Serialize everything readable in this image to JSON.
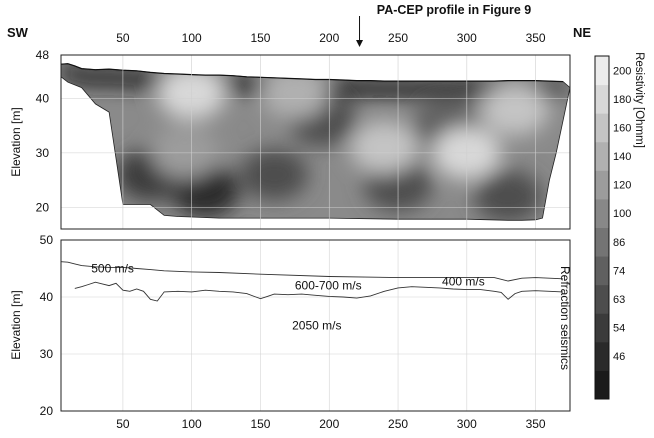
{
  "top_annotation": "PA-CEP profile in Figure 9",
  "chart_data": [
    {
      "type": "heatmap",
      "title": "",
      "direction_labels": {
        "left": "SW",
        "right": "NE"
      },
      "xlabel": "",
      "ylabel": "Elevation [m]",
      "xlim": [
        5,
        375
      ],
      "ylim": [
        16,
        48
      ],
      "x_ticks": [
        50,
        100,
        150,
        200,
        250,
        300,
        350
      ],
      "y_ticks": [
        20,
        30,
        40,
        48
      ],
      "grid": true,
      "marker_x": 222,
      "topography": {
        "x": [
          5,
          10,
          15,
          20,
          30,
          40,
          50,
          60,
          70,
          80,
          90,
          100,
          110,
          120,
          130,
          140,
          150,
          160,
          170,
          180,
          190,
          200,
          210,
          220,
          230,
          240,
          250,
          260,
          270,
          280,
          290,
          300,
          310,
          320,
          330,
          340,
          350,
          360,
          370
        ],
        "y": [
          46.3,
          46.4,
          46.0,
          45.5,
          45.3,
          45.4,
          45.2,
          45.1,
          44.8,
          44.6,
          44.5,
          44.4,
          44.3,
          44.3,
          44.2,
          44.0,
          43.9,
          43.8,
          43.7,
          43.6,
          43.5,
          43.5,
          43.4,
          43.3,
          43.3,
          43.2,
          43.2,
          43.2,
          43.2,
          43.2,
          43.2,
          43.2,
          43.2,
          43.2,
          43.3,
          43.3,
          43.3,
          43.2,
          43.1
        ]
      },
      "bottom_boundary": {
        "x": [
          5,
          10,
          20,
          30,
          40,
          50,
          60,
          70,
          80,
          90,
          100,
          120,
          150,
          200,
          250,
          300,
          330,
          340,
          350,
          355,
          360,
          365,
          370,
          375
        ],
        "y": [
          44.0,
          43.0,
          42.0,
          39.0,
          37.5,
          20.5,
          20.5,
          20.5,
          18.5,
          18.3,
          18.2,
          18.0,
          18.0,
          18.0,
          17.8,
          17.8,
          17.6,
          17.6,
          17.7,
          18.0,
          25.0,
          30.0,
          36.0,
          42.0
        ]
      },
      "colorbar": {
        "label": "Resistivity [Ohmm]",
        "tick_labels": [
          "46",
          "54",
          "63",
          "74",
          "86",
          "100",
          "120",
          "140",
          "160",
          "180",
          "200"
        ],
        "levels": [
          40,
          46,
          54,
          63,
          74,
          86,
          100,
          120,
          140,
          160,
          180,
          200,
          220
        ],
        "colors": [
          "#1a1a1a",
          "#2a2a2a",
          "#3b3b3b",
          "#4d4d4d",
          "#606060",
          "#747474",
          "#888888",
          "#9c9c9c",
          "#b0b0b0",
          "#c4c4c4",
          "#d8d8d8",
          "#ececec"
        ]
      },
      "resistivity_anomalies": [
        {
          "x": 110,
          "y": 23,
          "value": 46
        },
        {
          "x": 70,
          "y": 26,
          "value": 54
        },
        {
          "x": 160,
          "y": 26,
          "value": 63
        },
        {
          "x": 250,
          "y": 24,
          "value": 63
        },
        {
          "x": 330,
          "y": 22,
          "value": 63
        },
        {
          "x": 195,
          "y": 36,
          "value": 70
        },
        {
          "x": 285,
          "y": 35,
          "value": 80
        },
        {
          "x": 100,
          "y": 41,
          "value": 180
        },
        {
          "x": 175,
          "y": 41,
          "value": 150
        },
        {
          "x": 240,
          "y": 31,
          "value": 175
        },
        {
          "x": 300,
          "y": 30,
          "value": 185
        },
        {
          "x": 95,
          "y": 30,
          "value": 130
        },
        {
          "x": 335,
          "y": 38,
          "value": 160
        }
      ]
    },
    {
      "type": "line",
      "title": "",
      "xlabel": "",
      "ylabel": "Elevation [m]",
      "right_label": "Refraction seismics",
      "xlim": [
        5,
        375
      ],
      "ylim": [
        20,
        50
      ],
      "x_ticks": [
        50,
        100,
        150,
        200,
        250,
        300,
        350
      ],
      "y_ticks": [
        20,
        30,
        40,
        50
      ],
      "grid": true,
      "series": [
        {
          "x": [
            5,
            10,
            15,
            20,
            30,
            40,
            50,
            60,
            70,
            80,
            100,
            120,
            150,
            200,
            250,
            300,
            320,
            330,
            340,
            350,
            360,
            370
          ],
          "y": [
            46.2,
            46.1,
            45.8,
            45.5,
            45.3,
            45.2,
            45.2,
            45.0,
            44.8,
            44.6,
            44.4,
            44.3,
            44.0,
            43.6,
            43.4,
            43.4,
            43.4,
            42.8,
            43.3,
            43.4,
            43.3,
            43.2
          ]
        },
        {
          "x": [
            15,
            20,
            25,
            30,
            35,
            40,
            45,
            50,
            55,
            60,
            65,
            70,
            75,
            80,
            90,
            100,
            110,
            120,
            130,
            140,
            150,
            155,
            160,
            170,
            180,
            190,
            200,
            210,
            220,
            230,
            240,
            250,
            260,
            270,
            280,
            290,
            300,
            310,
            320,
            325,
            330,
            335,
            340,
            350,
            360,
            370
          ],
          "y": [
            41.5,
            41.8,
            42.2,
            42.6,
            42.3,
            42.0,
            42.4,
            41.2,
            41.0,
            41.4,
            41.0,
            39.6,
            39.3,
            40.9,
            41.0,
            40.9,
            41.2,
            41.0,
            40.9,
            40.6,
            39.7,
            40.1,
            40.5,
            40.4,
            40.5,
            40.3,
            40.1,
            40.0,
            39.8,
            40.2,
            41.0,
            41.6,
            41.8,
            41.7,
            41.6,
            41.4,
            41.3,
            41.3,
            41.0,
            40.8,
            39.6,
            40.6,
            41.0,
            41.1,
            41.0,
            40.9
          ]
        }
      ],
      "annotations": [
        {
          "text": "500 m/s",
          "x": 27,
          "y": 44.3
        },
        {
          "text": "600-700 m/s",
          "x": 175,
          "y": 41.3
        },
        {
          "text": "400 m/s",
          "x": 282,
          "y": 42.0
        },
        {
          "text": "2050 m/s",
          "x": 173,
          "y": 34.3
        }
      ]
    }
  ]
}
